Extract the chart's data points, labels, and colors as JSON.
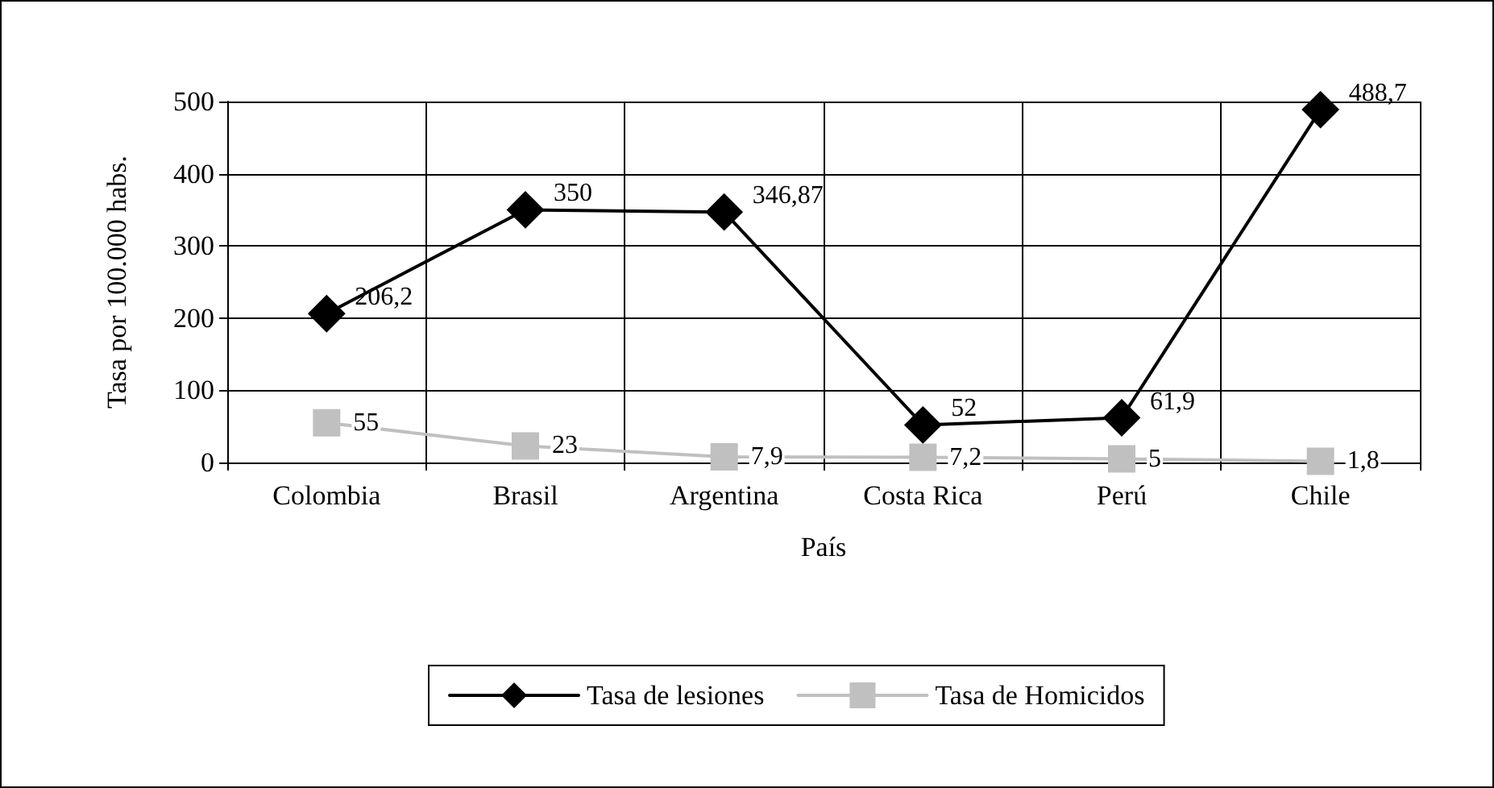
{
  "chart_data": {
    "type": "line",
    "xlabel": "País",
    "ylabel": "Tasa por 100.000 habs.",
    "categories": [
      "Colombia",
      "Brasil",
      "Argentina",
      "Costa Rica",
      "Perú",
      "Chile"
    ],
    "series": [
      {
        "name": "Tasa de lesiones",
        "color": "#000000",
        "marker": "diamond",
        "values": [
          206.2,
          350,
          346.87,
          52,
          61.9,
          488.7
        ],
        "value_labels": [
          "206,2",
          "350",
          "346,87",
          "52",
          "61,9",
          "488,7"
        ]
      },
      {
        "name": "Tasa de Homicidos",
        "color": "#c0c0c0",
        "marker": "square",
        "values": [
          55,
          23,
          7.9,
          7.2,
          5,
          1.8
        ],
        "value_labels": [
          "55",
          "23",
          "7,9",
          "7,2",
          "5",
          "1,8"
        ]
      }
    ],
    "ylim": [
      0,
      500
    ],
    "yticks": [
      0,
      100,
      200,
      300,
      400,
      500
    ],
    "grid": true,
    "legend": "bottom",
    "line_style": "solid"
  }
}
